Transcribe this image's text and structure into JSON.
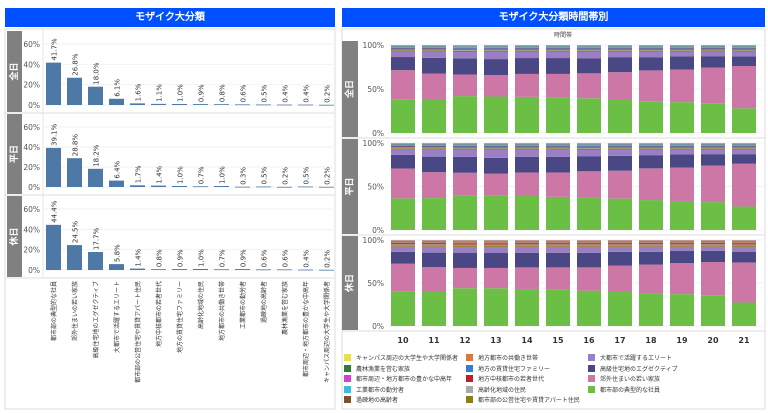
{
  "left_title": "モザイク大分類",
  "right_title": "モザイク大分類時間帯別",
  "right_axis_title": "時間帯",
  "chart_data": [
    {
      "type": "bar",
      "title": "モザイク大分類",
      "ylim": [
        0,
        60
      ],
      "yticks": [
        "60%",
        "40%",
        "20%",
        "0%"
      ],
      "ytick_values": [
        60,
        40,
        20,
        0
      ],
      "categories": [
        "都市部の典型的な社員",
        "郊外住まいの若い家族",
        "高級住宅地のエグゼクティブ",
        "大都市で活躍するエリート",
        "都市部の公営住宅や賃貸アパート住民",
        "地方中核都市の若者世代",
        "地方の賃貸住宅ファミリー",
        "高齢化地域の住民",
        "地方都市の共働き世帯",
        "工業都市の勤労者",
        "過疎地の高齢者",
        "農林漁業を営む家族",
        "都市周辺・地方都市の豊かな中高年",
        "キャンパス周辺の大学生や大学関係者"
      ],
      "panels": [
        {
          "name": "全日",
          "values": [
            41.7,
            26.8,
            18.0,
            6.1,
            1.6,
            1.1,
            1.0,
            0.9,
            0.8,
            0.6,
            0.5,
            0.4,
            0.4,
            0.2
          ]
        },
        {
          "name": "平日",
          "values": [
            39.1,
            28.8,
            18.2,
            6.4,
            1.7,
            1.4,
            1.0,
            0.7,
            1.0,
            0.3,
            0.5,
            0.2,
            0.5,
            0.2
          ]
        },
        {
          "name": "休日",
          "values": [
            44.4,
            24.5,
            17.7,
            5.8,
            1.4,
            0.8,
            0.9,
            1.0,
            0.7,
            0.9,
            0.6,
            0.6,
            0.4,
            0.2
          ]
        }
      ],
      "bar_color": "#4e79a7"
    },
    {
      "type": "bar",
      "stacked": true,
      "normalized": true,
      "title": "モザイク大分類時間帯別",
      "xlabel": "時間帯",
      "x": [
        "10",
        "11",
        "12",
        "13",
        "14",
        "15",
        "16",
        "17",
        "18",
        "19",
        "20",
        "21"
      ],
      "yticks": [
        "100%",
        "50%",
        "0%"
      ],
      "ytick_values": [
        100,
        50,
        0
      ],
      "legend": [
        {
          "name": "キャンパス周辺の大学生や大学関係者",
          "color": "#e8e046"
        },
        {
          "name": "農林漁業を営む家族",
          "color": "#2e7d32"
        },
        {
          "name": "都市周辺・地方都市の豊かな中高年",
          "color": "#d63fd6"
        },
        {
          "name": "工業都市の勤労者",
          "color": "#3bbcd8"
        },
        {
          "name": "過疎地の高齢者",
          "color": "#7a5230"
        },
        {
          "name": "地方都市の共働き世帯",
          "color": "#d9783a"
        },
        {
          "name": "地方の賃貸住宅ファミリー",
          "color": "#2f7fd6"
        },
        {
          "name": "地方中核都市の若者世代",
          "color": "#c0202a"
        },
        {
          "name": "高齢化地域の住民",
          "color": "#a9a9ad"
        },
        {
          "name": "都市部の公営住宅や賃貸アパート住民",
          "color": "#8a7f10"
        },
        {
          "name": "大都市で活躍するエリート",
          "color": "#9b7fc6"
        },
        {
          "name": "高級住宅地のエグゼクティブ",
          "color": "#4a4785"
        },
        {
          "name": "郊外住まいの若い家族",
          "color": "#cc77a6"
        },
        {
          "name": "都市部の典型的な社員",
          "color": "#6cbf45"
        }
      ],
      "stack_order": [
        "都市部の典型的な社員",
        "郊外住まいの若い家族",
        "高級住宅地のエグゼクティブ",
        "大都市で活躍するエリート",
        "都市部の公営住宅や賃貸アパート住民",
        "高齢化地域の住民",
        "地方中核都市の若者世代",
        "地方の賃貸住宅ファミリー",
        "地方都市の共働き世帯",
        "過疎地の高齢者",
        "工業都市の勤労者",
        "都市周辺・地方都市の豊かな中高年",
        "農林漁業を営む家族",
        "キャンパス周辺の大学生や大学関係者"
      ],
      "small_series_share": [
        1.5,
        1.2,
        1.0,
        1.0,
        0.8,
        0.5,
        0.6,
        0.5,
        0.4,
        0.3
      ],
      "panels": [
        {
          "name": "全日",
          "main": [
            [
              38,
              39,
              41,
              41,
              41,
              40,
              39,
              38,
              36,
              35,
              34,
              28
            ],
            [
              34,
              29,
              24,
              24,
              26,
              27,
              28,
              31,
              35,
              37,
              41,
              48
            ],
            [
              15,
              18,
              18,
              18,
              18,
              18,
              17,
              17,
              15,
              15,
              13,
              11
            ],
            [
              6,
              7,
              7,
              8,
              7,
              7,
              7,
              6,
              6,
              5,
              5,
              5
            ]
          ]
        },
        {
          "name": "平日",
          "main": [
            [
              37,
              37,
              39,
              39,
              39,
              38,
              37,
              36,
              34,
              33,
              32,
              27
            ],
            [
              35,
              30,
              26,
              25,
              27,
              28,
              29,
              32,
              36,
              38,
              42,
              49
            ],
            [
              16,
              18,
              18,
              18,
              18,
              18,
              17,
              17,
              15,
              15,
              13,
              11
            ],
            [
              6,
              8,
              8,
              9,
              8,
              8,
              7,
              7,
              6,
              5,
              5,
              5
            ]
          ]
        },
        {
          "name": "休日",
          "main": [
            [
              40,
              41,
              43,
              43,
              43,
              42,
              41,
              40,
              38,
              37,
              36,
              27
            ],
            [
              33,
              28,
              23,
              23,
              25,
              26,
              27,
              30,
              34,
              36,
              39,
              46
            ],
            [
              14,
              17,
              17,
              17,
              17,
              17,
              17,
              16,
              15,
              14,
              13,
              12
            ],
            [
              6,
              7,
              7,
              7,
              7,
              7,
              7,
              6,
              6,
              5,
              5,
              6
            ]
          ]
        }
      ]
    }
  ]
}
